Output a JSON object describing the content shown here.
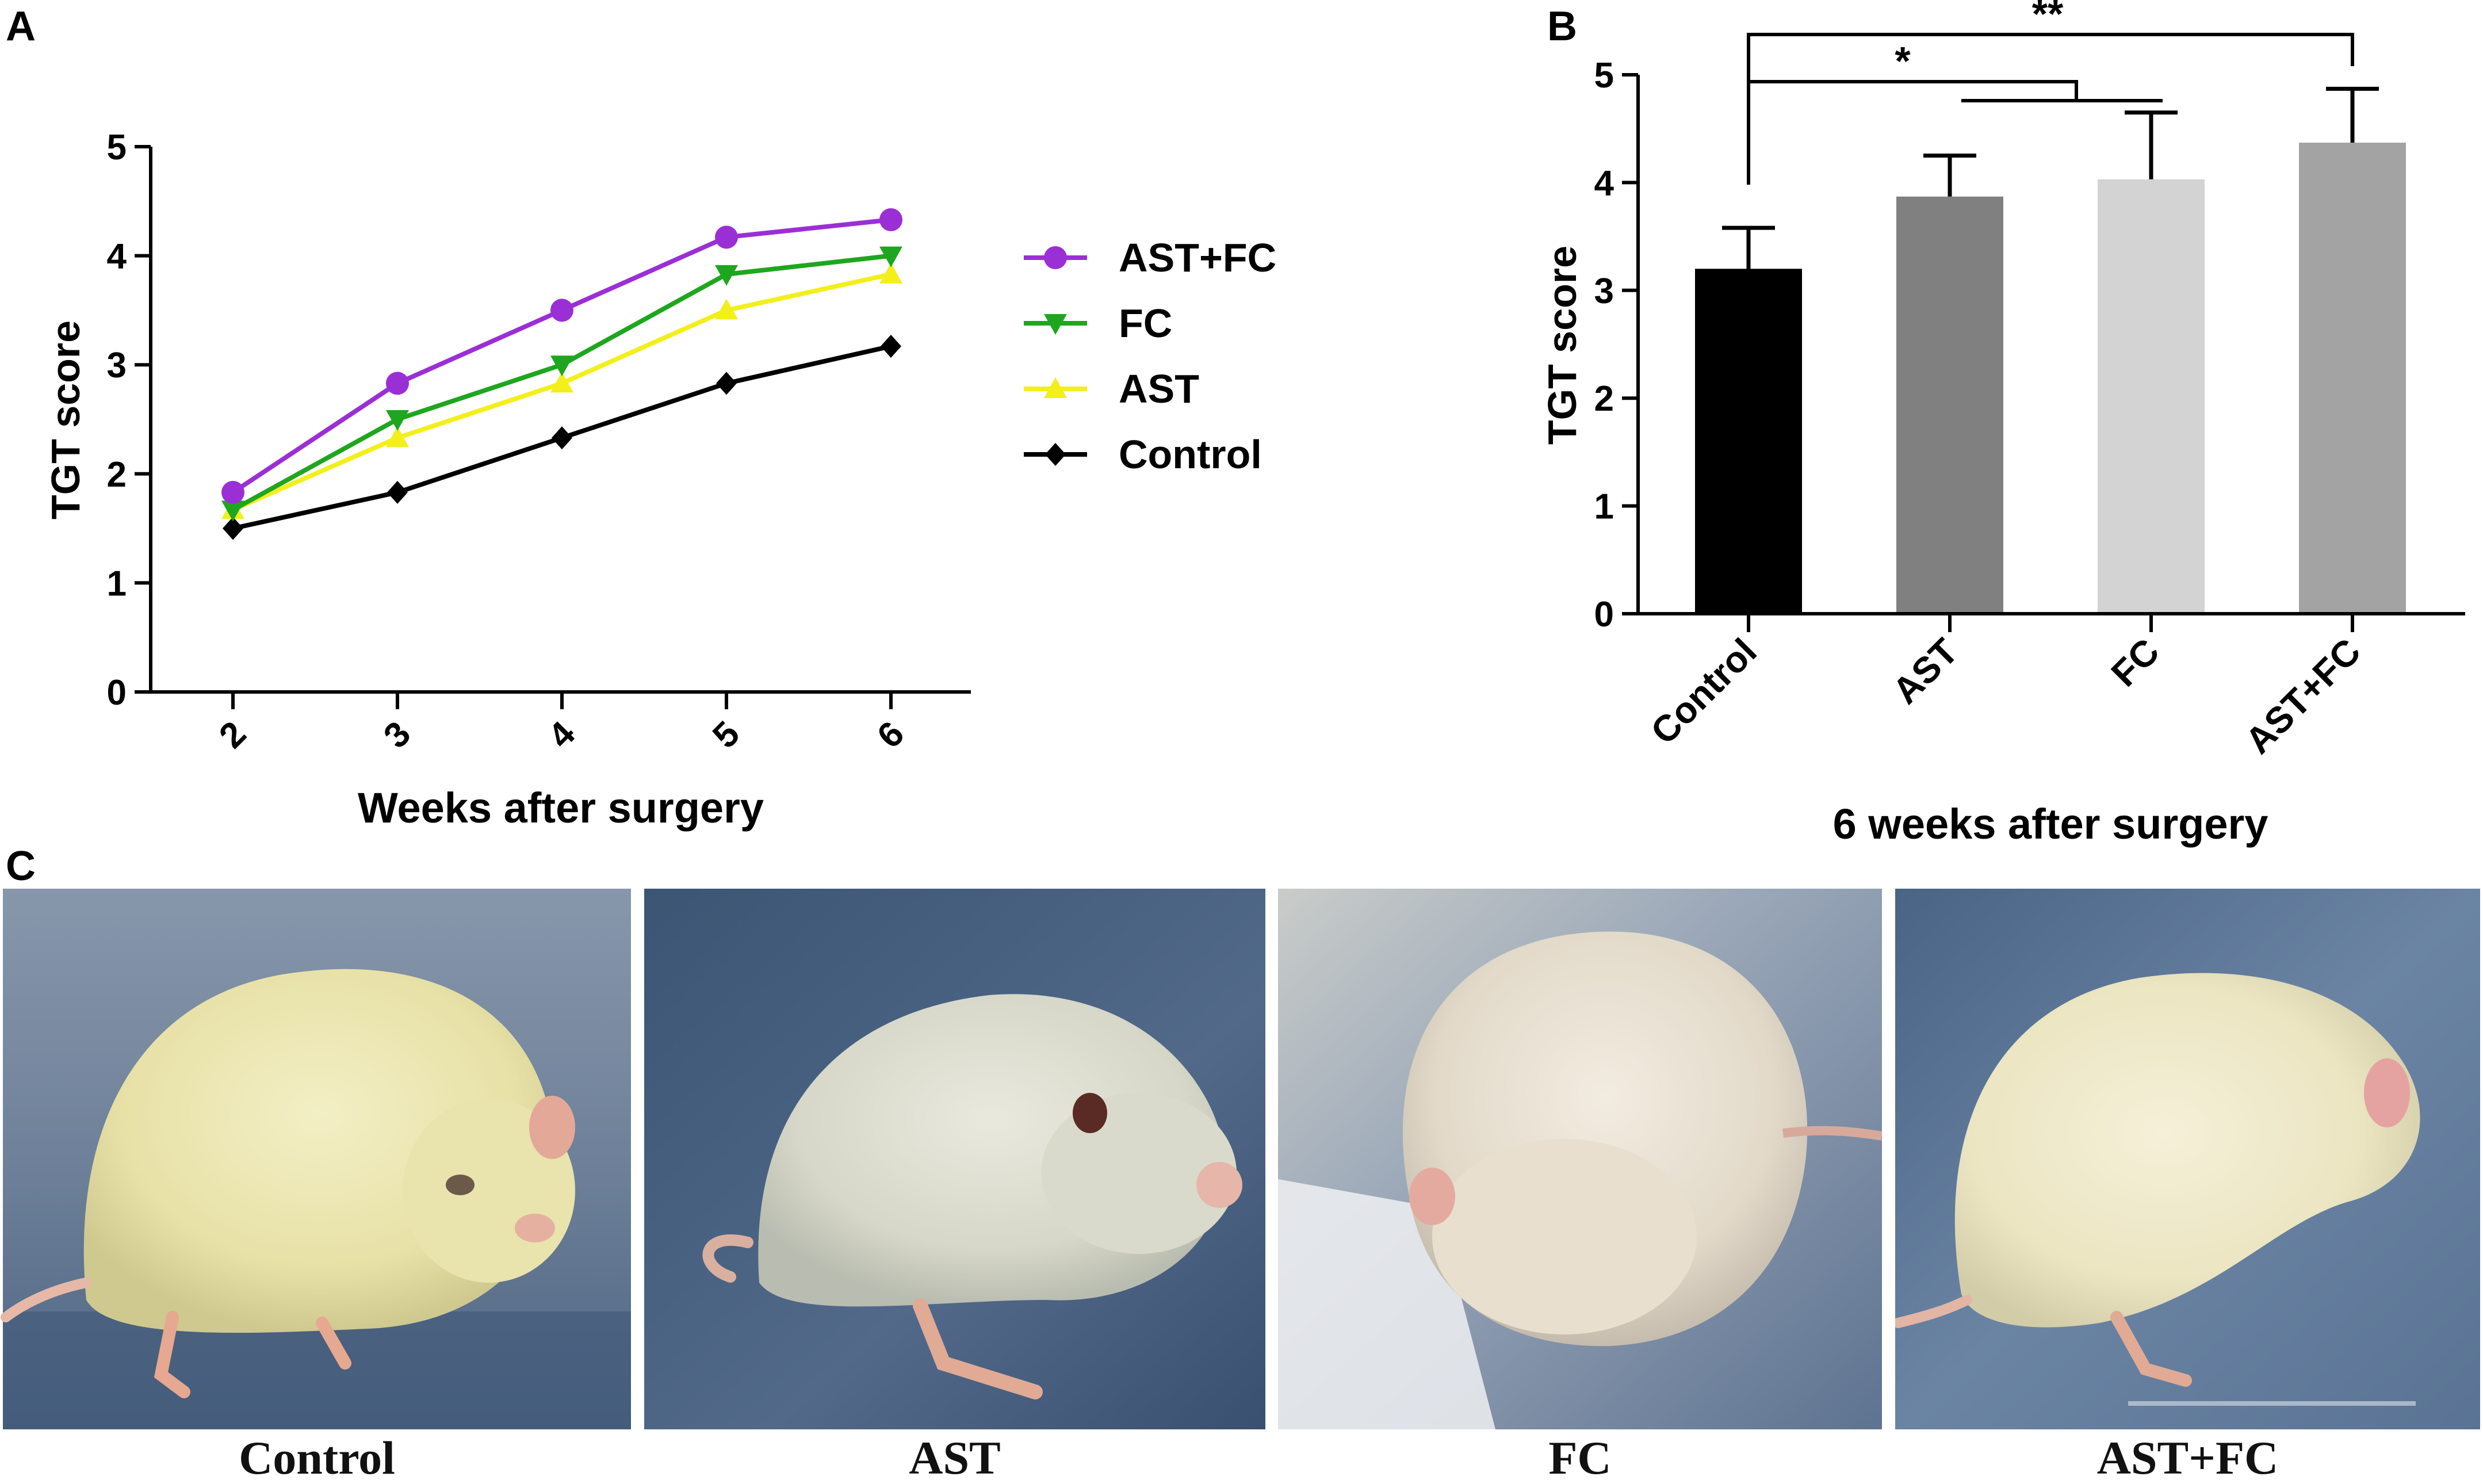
{
  "panels": {
    "a_label": "A",
    "b_label": "B",
    "c_label": "C"
  },
  "chart_data": [
    {
      "type": "line",
      "panel": "A",
      "title": "",
      "xlabel": "Weeks after surgery",
      "ylabel": "TGT score",
      "x": [
        2,
        3,
        4,
        5,
        6
      ],
      "x_tick_labels": [
        "2",
        "3",
        "4",
        "5",
        "6"
      ],
      "ylim": [
        0,
        5
      ],
      "y_ticks": [
        0,
        1,
        2,
        3,
        4,
        5
      ],
      "y_tick_labels": [
        "0",
        "1",
        "2",
        "3",
        "4",
        "5"
      ],
      "legend_position": "right",
      "series": [
        {
          "name": "AST+FC",
          "color": "#9b2fd6",
          "marker": "circle",
          "values": [
            1.83,
            2.83,
            3.5,
            4.17,
            4.33
          ]
        },
        {
          "name": "FC",
          "color": "#1fa61f",
          "marker": "triangle-down",
          "values": [
            1.67,
            2.5,
            3.0,
            3.83,
            4.0
          ]
        },
        {
          "name": "AST",
          "color": "#f2ef1a",
          "marker": "triangle-up",
          "values": [
            1.67,
            2.33,
            2.83,
            3.5,
            3.83
          ]
        },
        {
          "name": "Control",
          "color": "#000000",
          "marker": "diamond",
          "values": [
            1.5,
            1.83,
            2.33,
            2.83,
            3.17
          ]
        }
      ]
    },
    {
      "type": "bar",
      "panel": "B",
      "title": "",
      "xlabel": "6 weeks after surgery",
      "ylabel": "TGT score",
      "categories": [
        "Control",
        "AST",
        "FC",
        "AST+FC"
      ],
      "values": [
        3.2,
        3.87,
        4.03,
        4.37
      ],
      "errors": [
        0.38,
        0.38,
        0.62,
        0.5
      ],
      "colors": [
        "#000000",
        "#808080",
        "#d3d3d3",
        "#a3a3a3"
      ],
      "ylim": [
        0,
        5
      ],
      "y_ticks": [
        0,
        1,
        2,
        3,
        4,
        5
      ],
      "y_tick_labels": [
        "0",
        "1",
        "2",
        "3",
        "4",
        "5"
      ],
      "significance": [
        {
          "label": "*",
          "from": "Control",
          "to": [
            "AST",
            "FC"
          ]
        },
        {
          "label": "**",
          "from": "Control",
          "to": [
            "AST+FC"
          ]
        }
      ]
    }
  ],
  "photos": [
    {
      "caption": "Control"
    },
    {
      "caption": "AST"
    },
    {
      "caption": "FC"
    },
    {
      "caption": "AST+FC"
    }
  ]
}
